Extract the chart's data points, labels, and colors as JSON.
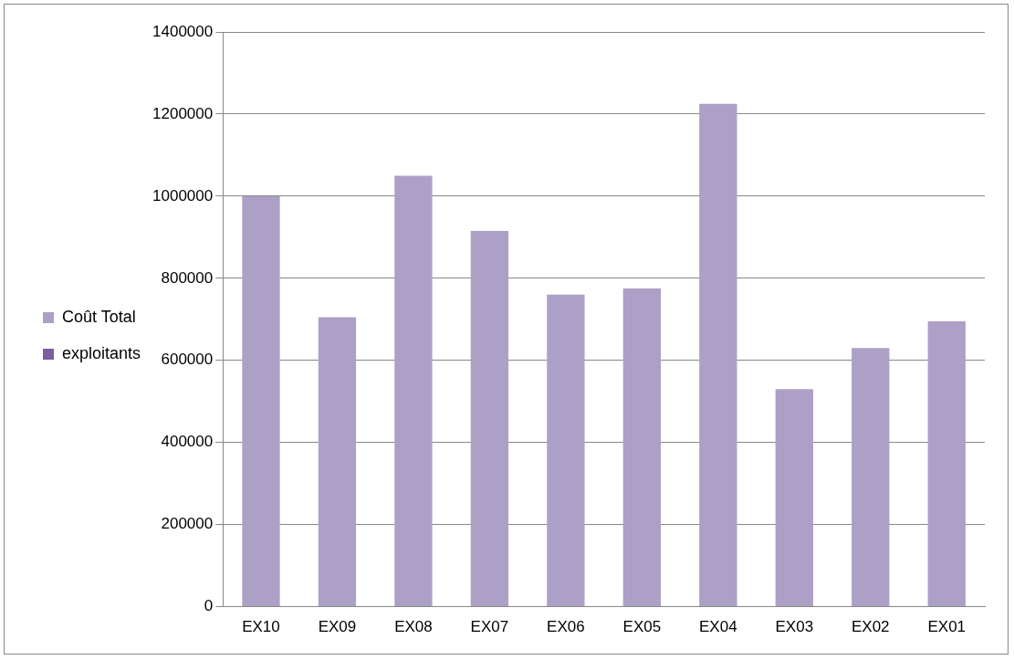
{
  "chart_data": {
    "type": "bar",
    "categories": [
      "EX10",
      "EX09",
      "EX08",
      "EX07",
      "EX06",
      "EX05",
      "EX04",
      "EX03",
      "EX02",
      "EX01"
    ],
    "series": [
      {
        "name": "Coût Total",
        "color": "#ada0c6",
        "values": [
          1000000,
          705000,
          1050000,
          915000,
          760000,
          775000,
          1225000,
          530000,
          630000,
          695000
        ]
      },
      {
        "name": "exploitants",
        "color": "#7b5e9e",
        "values": [
          null,
          null,
          null,
          null,
          null,
          null,
          null,
          null,
          null,
          null
        ]
      }
    ],
    "ylim": [
      0,
      1400000
    ],
    "yticks": [
      0,
      200000,
      400000,
      600000,
      800000,
      1000000,
      1200000,
      1400000
    ],
    "grid": "y",
    "legend": "left"
  }
}
